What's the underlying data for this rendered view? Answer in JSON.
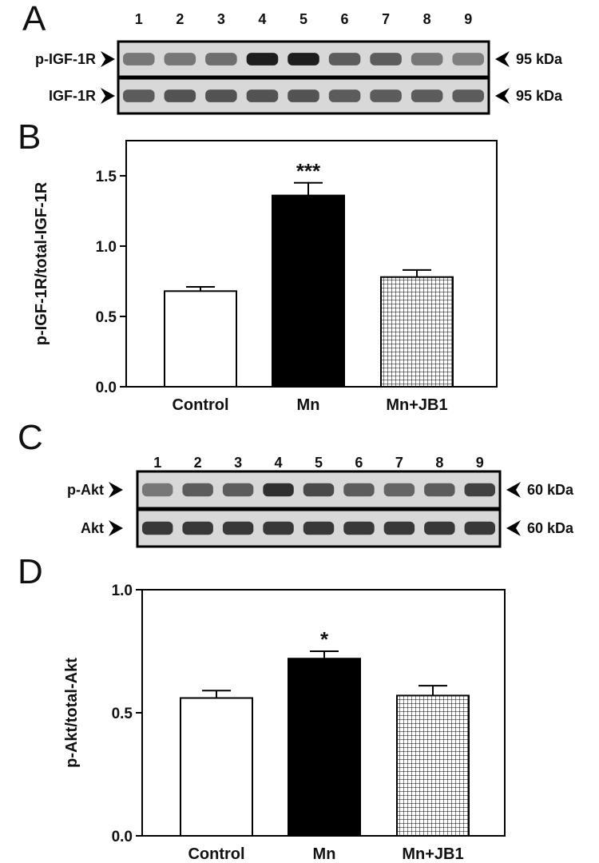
{
  "panels": {
    "a": {
      "letter": "A",
      "lanes": [
        "1",
        "2",
        "3",
        "4",
        "5",
        "6",
        "7",
        "8",
        "9"
      ],
      "rows": [
        {
          "label": "p-IGF-1R",
          "size": "95 kDa",
          "intensity": [
            0.45,
            0.45,
            0.5,
            0.95,
            0.95,
            0.6,
            0.6,
            0.45,
            0.4
          ]
        },
        {
          "label": "IGF-1R",
          "size": "95 kDa",
          "intensity": [
            0.6,
            0.65,
            0.65,
            0.65,
            0.65,
            0.6,
            0.6,
            0.6,
            0.6
          ]
        }
      ]
    },
    "b": {
      "letter": "B"
    },
    "c": {
      "letter": "C",
      "lanes": [
        "1",
        "2",
        "3",
        "4",
        "5",
        "6",
        "7",
        "8",
        "9"
      ],
      "rows": [
        {
          "label": "p-Akt",
          "size": "60 kDa",
          "intensity": [
            0.45,
            0.6,
            0.6,
            0.85,
            0.7,
            0.6,
            0.55,
            0.6,
            0.75
          ]
        },
        {
          "label": "Akt",
          "size": "60 kDa",
          "intensity": [
            0.8,
            0.8,
            0.8,
            0.8,
            0.8,
            0.8,
            0.8,
            0.8,
            0.8
          ]
        }
      ]
    },
    "d": {
      "letter": "D"
    }
  },
  "colors": {
    "ink": "#111111",
    "bar_mn": "#000000",
    "bar_control": "#ffffff",
    "blot_bg": "#d8d8d8"
  },
  "chart_data": [
    {
      "type": "bar",
      "panel": "B",
      "categories": [
        "Control",
        "Mn",
        "Mn+JB1"
      ],
      "values": [
        0.68,
        1.36,
        0.78
      ],
      "errors": [
        0.03,
        0.09,
        0.05
      ],
      "annotations": [
        "",
        "***",
        ""
      ],
      "fills": [
        "white",
        "black",
        "grid"
      ],
      "ylabel": "p-IGF-1R/total-IGF-1R",
      "ylim": [
        0,
        1.75
      ],
      "yticks": [
        "0.0",
        "0.5",
        "1.0",
        "1.5"
      ],
      "tick_values": [
        0,
        0.5,
        1.0,
        1.5
      ]
    },
    {
      "type": "bar",
      "panel": "D",
      "categories": [
        "Control",
        "Mn",
        "Mn+JB1"
      ],
      "values": [
        0.56,
        0.72,
        0.57
      ],
      "errors": [
        0.03,
        0.03,
        0.04
      ],
      "annotations": [
        "",
        "*",
        ""
      ],
      "fills": [
        "white",
        "black",
        "grid"
      ],
      "ylabel": "p-Akt/total-Akt",
      "ylim": [
        0,
        1.0
      ],
      "yticks": [
        "0.0",
        "0.5",
        "1.0"
      ],
      "tick_values": [
        0,
        0.5,
        1.0
      ]
    }
  ]
}
